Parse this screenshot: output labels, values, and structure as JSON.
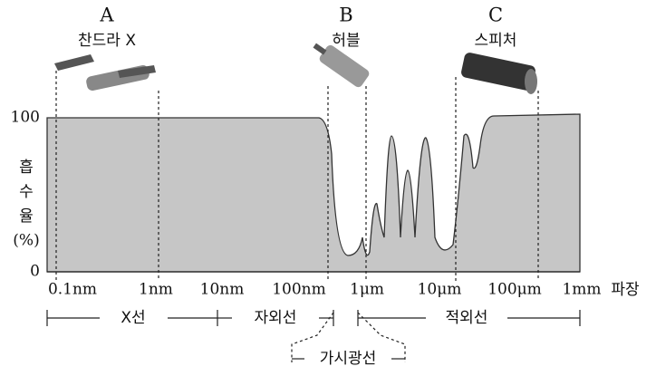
{
  "telescopes": [
    {
      "letter": "A",
      "name": "찬드라 X"
    },
    {
      "letter": "B",
      "name": "허블"
    },
    {
      "letter": "C",
      "name": "스피처"
    }
  ],
  "y_axis": {
    "label_lines": [
      "흡",
      "수",
      "율",
      "(%)"
    ],
    "ticks": [
      "100",
      "0"
    ]
  },
  "x_axis": {
    "ticks": [
      "0.1nm",
      "1nm",
      "10nm",
      "100nm",
      "1μm",
      "10μm",
      "100μm",
      "1mm"
    ],
    "label": "파장"
  },
  "bands": [
    "X선",
    "자외선",
    "가시광선",
    "적외선"
  ]
}
